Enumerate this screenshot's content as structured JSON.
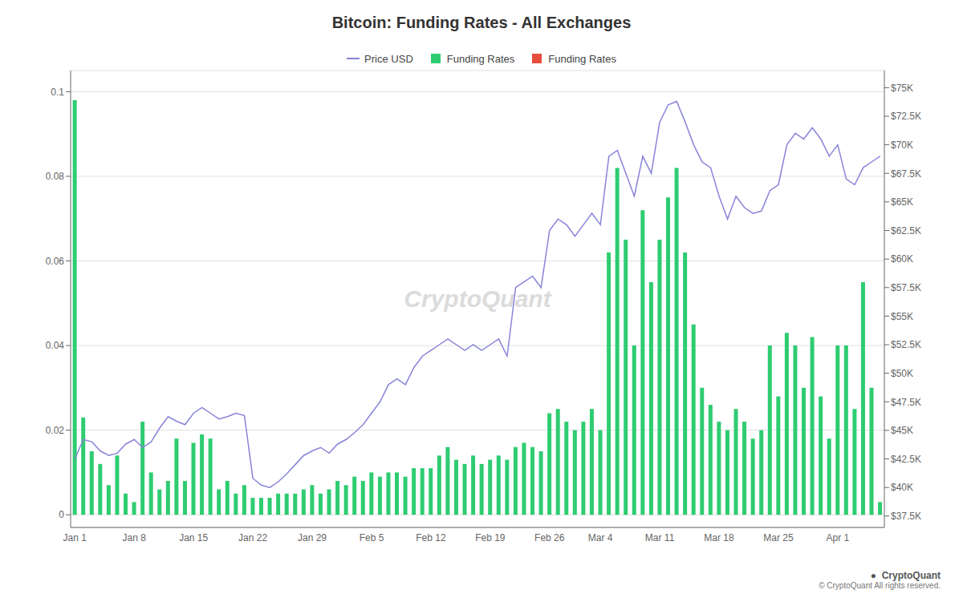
{
  "chart_data": {
    "type": "bar",
    "title": "Bitcoin: Funding Rates - All Exchanges",
    "categories": [
      "Jan 1",
      null,
      null,
      null,
      null,
      null,
      null,
      "Jan 8",
      null,
      null,
      null,
      null,
      null,
      null,
      "Jan 15",
      null,
      null,
      null,
      null,
      null,
      null,
      "Jan 22",
      null,
      null,
      null,
      null,
      null,
      null,
      "Jan 29",
      null,
      null,
      null,
      null,
      null,
      null,
      "Feb 5",
      null,
      null,
      null,
      null,
      null,
      null,
      "Feb 12",
      null,
      null,
      null,
      null,
      null,
      null,
      "Feb 19",
      null,
      null,
      null,
      null,
      null,
      null,
      "Feb 26",
      null,
      null,
      null,
      null,
      null,
      "Mar 4",
      null,
      null,
      null,
      null,
      null,
      null,
      "Mar 11",
      null,
      null,
      null,
      null,
      null,
      null,
      "Mar 18",
      null,
      null,
      null,
      null,
      null,
      null,
      "Mar 25",
      null,
      null,
      null,
      null,
      null,
      null,
      "Apr 1",
      null,
      null,
      null,
      null,
      null
    ],
    "series": [
      {
        "name": "Price USD",
        "type": "line",
        "axis": "y2",
        "color": "#8884d8",
        "values": [
          42500,
          44200,
          44000,
          43200,
          42800,
          43000,
          43800,
          44200,
          43500,
          44000,
          45200,
          46200,
          45800,
          45500,
          46500,
          47000,
          46500,
          46000,
          46200,
          46500,
          46300,
          40800,
          40200,
          40000,
          40500,
          41200,
          42000,
          42800,
          43200,
          43500,
          43000,
          43800,
          44200,
          44800,
          45500,
          46500,
          47500,
          49000,
          49500,
          49000,
          50500,
          51500,
          52000,
          52500,
          53000,
          52500,
          52000,
          52500,
          52000,
          52500,
          53000,
          51500,
          57500,
          58000,
          58500,
          57500,
          62500,
          63500,
          63000,
          62000,
          63000,
          64000,
          63000,
          69000,
          69500,
          67500,
          65500,
          69000,
          67500,
          72000,
          73500,
          73800,
          72000,
          70000,
          68500,
          68000,
          65500,
          63500,
          65500,
          64500,
          64000,
          64200,
          66000,
          66500,
          70000,
          71000,
          70500,
          71500,
          70500,
          69000,
          70000,
          67000,
          66500,
          68000,
          68500,
          69000
        ]
      },
      {
        "name": "Funding Rates",
        "type": "bar",
        "color": "#2ecc71",
        "values": [
          0.098,
          0.023,
          0.015,
          0.012,
          0.007,
          0.014,
          0.005,
          0.003,
          0.022,
          0.01,
          0.006,
          0.008,
          0.018,
          0.008,
          0.017,
          0.019,
          0.018,
          0.006,
          0.008,
          0.005,
          0.007,
          0.004,
          0.004,
          0.004,
          0.005,
          0.005,
          0.005,
          0.006,
          0.007,
          0.005,
          0.006,
          0.008,
          0.007,
          0.009,
          0.008,
          0.01,
          0.009,
          0.01,
          0.01,
          0.009,
          0.011,
          0.011,
          0.011,
          0.014,
          0.016,
          0.013,
          0.012,
          0.014,
          0.012,
          0.013,
          0.014,
          0.013,
          0.016,
          0.017,
          0.016,
          0.015,
          0.024,
          0.025,
          0.022,
          0.02,
          0.022,
          0.025,
          0.02,
          0.062,
          0.082,
          0.065,
          0.04,
          0.072,
          0.055,
          0.065,
          0.075,
          0.082,
          0.062,
          0.045,
          0.03,
          0.026,
          0.022,
          0.02,
          0.025,
          0.022,
          0.018,
          0.02,
          0.04,
          0.028,
          0.043,
          0.04,
          0.03,
          0.042,
          0.028,
          0.018,
          0.04,
          0.04,
          0.025,
          0.055,
          0.03,
          0.003
        ]
      },
      {
        "name": "Funding Rates",
        "type": "bar",
        "color": "#e74c3c",
        "values": [
          null,
          null,
          null,
          null,
          null,
          null,
          null,
          null,
          null,
          null,
          null,
          null,
          null,
          null,
          null,
          null,
          null,
          null,
          null,
          null,
          null,
          null,
          null,
          null,
          null,
          null,
          null,
          null,
          null,
          null,
          null,
          null,
          null,
          null,
          null,
          null,
          null,
          null,
          null,
          null,
          null,
          null,
          null,
          null,
          null,
          null,
          null,
          null,
          null,
          null,
          null,
          null,
          null,
          null,
          null,
          null,
          null,
          null,
          null,
          null,
          null,
          null,
          null,
          null,
          null,
          null,
          null,
          null,
          null,
          null,
          null,
          null,
          null,
          null,
          null,
          null,
          null,
          null,
          null,
          null,
          null,
          null,
          null,
          null,
          null,
          null,
          null,
          null,
          null,
          null,
          null,
          null,
          null,
          null,
          null,
          null
        ]
      }
    ],
    "stacked": true,
    "ylim": [
      -0.003,
      0.105
    ],
    "yticks": [
      0,
      0.02,
      0.04,
      0.06,
      0.08,
      0.1
    ],
    "y2lim": [
      36500,
      76500
    ],
    "y2ticks": [
      {
        "value": 37500,
        "label": "$37.5K"
      },
      {
        "value": 40000,
        "label": "$40K"
      },
      {
        "value": 42500,
        "label": "$42.5K"
      },
      {
        "value": 45000,
        "label": "$45K"
      },
      {
        "value": 47500,
        "label": "$47.5K"
      },
      {
        "value": 50000,
        "label": "$50K"
      },
      {
        "value": 52500,
        "label": "$52.5K"
      },
      {
        "value": 55000,
        "label": "$55K"
      },
      {
        "value": 57500,
        "label": "$57.5K"
      },
      {
        "value": 60000,
        "label": "$60K"
      },
      {
        "value": 62500,
        "label": "$62.5K"
      },
      {
        "value": 65000,
        "label": "$65K"
      },
      {
        "value": 67500,
        "label": "$67.5K"
      },
      {
        "value": 70000,
        "label": "$70K"
      },
      {
        "value": 72500,
        "label": "$72.5K"
      },
      {
        "value": 75000,
        "label": "$75K"
      }
    ],
    "grid": true,
    "legend": "top",
    "annotations": [
      "CryptoQuant",
      "© CryptoQuant All rights reserved.",
      "●  CryptoQuant"
    ]
  }
}
